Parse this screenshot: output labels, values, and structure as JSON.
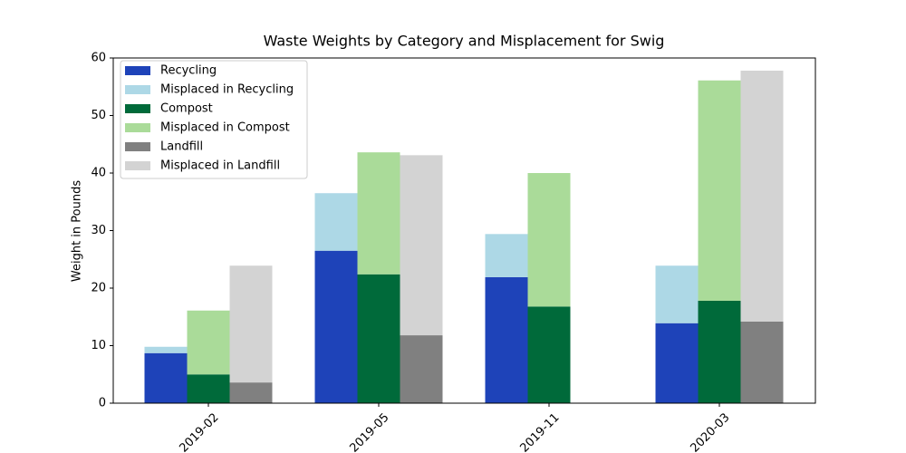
{
  "chart_data": {
    "type": "bar",
    "title": "Waste Weights by Category and Misplacement for Swig",
    "y_label": "Weight in Pounds",
    "categories": [
      "2019-02",
      "2019-05",
      "2019-11",
      "2020-03"
    ],
    "series": [
      {
        "name": "Recycling",
        "color": "#1e43b9",
        "values": [
          8.7,
          26.5,
          21.9,
          13.9
        ]
      },
      {
        "name": "Misplaced in Recycling",
        "color": "#add8e6",
        "values": [
          1.1,
          10.0,
          7.5,
          10.0
        ]
      },
      {
        "name": "Compost",
        "color": "#006a3a",
        "values": [
          5.0,
          22.4,
          16.8,
          17.8
        ]
      },
      {
        "name": "Misplaced in Compost",
        "color": "#aadb99",
        "values": [
          11.1,
          21.2,
          23.2,
          38.3
        ]
      },
      {
        "name": "Landfill",
        "color": "#808080",
        "values": [
          3.6,
          11.8,
          0,
          14.2
        ]
      },
      {
        "name": "Misplaced in Landfill",
        "color": "#d3d3d3",
        "values": [
          20.3,
          31.3,
          0,
          43.6
        ]
      }
    ],
    "ylim": [
      0,
      60
    ],
    "yticks": [
      0,
      10,
      20,
      30,
      40,
      50,
      60
    ],
    "legend": "upper left"
  }
}
